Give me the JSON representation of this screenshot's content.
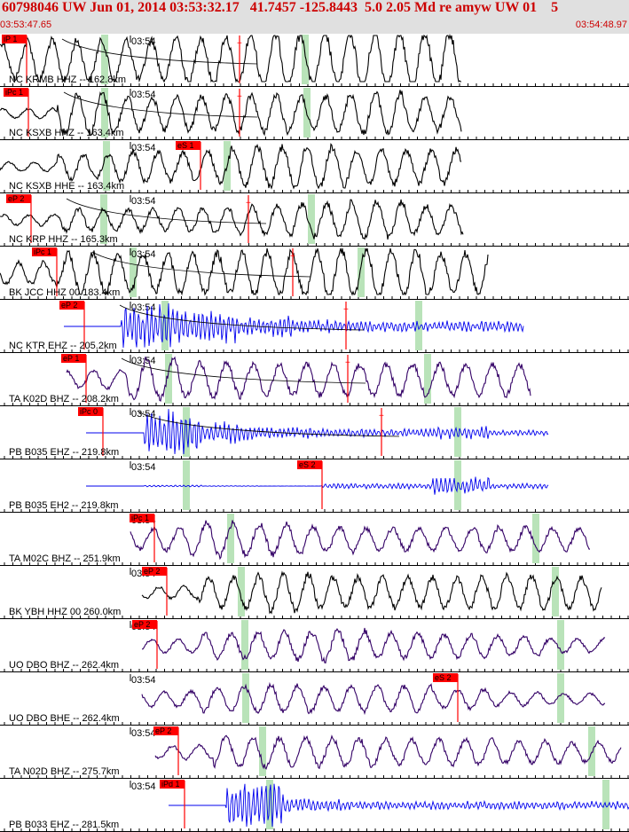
{
  "header": {
    "title": "60798046 UW Jun 01, 2014 03:53:32.17   41.7457 -125.8443  5.0 2.05 Md re amyw UW 01    5",
    "start_time": "03:53:47.65",
    "end_time": "03:54:48.97"
  },
  "colors": {
    "header_bg": "#e0e0e0",
    "header_text": "#cc0000",
    "pick": "#ff0000",
    "window": "#b9e3b9",
    "trace_black": "#000000",
    "trace_blue": "#0000ee",
    "trace_purple": "#330066"
  },
  "chart_data": {
    "type": "seismogram",
    "minute_label": "03:54",
    "traces": [
      {
        "label": "NC KRMB HHZ -- 162.8km",
        "color": "black",
        "picks": [
          {
            "label": "iP 1",
            "x": 30
          },
          {
            "label": "",
            "x": 270
          }
        ],
        "window": 118,
        "late_window": 344,
        "curve": true,
        "amp": 26,
        "env": [
          1.0,
          1.0,
          1.0,
          1.2,
          1.3,
          1.3,
          1.4,
          1.4
        ],
        "end": 520
      },
      {
        "label": "NC KSXB HHZ -- 163.4km",
        "color": "black",
        "picks": [
          {
            "label": "iPc 1",
            "x": 32
          },
          {
            "label": "",
            "x": 270
          }
        ],
        "window": 118,
        "late_window": 346,
        "curve": true,
        "amp": 22,
        "env": [
          0.3,
          1.2,
          1.0,
          1.0,
          1.1,
          1.0,
          1.2,
          1.0
        ],
        "end": 520
      },
      {
        "label": "NC KSXB HHE -- 163.4km",
        "color": "black",
        "picks": [
          {
            "label": "eS 1",
            "x": 226
          }
        ],
        "window": 120,
        "late_window": 256,
        "curve": false,
        "amp": 22,
        "env": [
          0.3,
          0.8,
          1.0,
          0.9,
          1.2,
          1.2,
          1.0,
          1.0
        ],
        "end": 520
      },
      {
        "label": "NC KRP HHZ -- 165.3km",
        "color": "black",
        "picks": [
          {
            "label": "eP 2",
            "x": 35
          },
          {
            "label": "",
            "x": 280
          }
        ],
        "window": 117,
        "late_window": 351,
        "curve": true,
        "amp": 18,
        "env": [
          0.4,
          0.8,
          0.8,
          0.9,
          1.0,
          1.2,
          1.3,
          1.0
        ],
        "end": 522
      },
      {
        "label": "BK JCC HHZ 00 183.4km",
        "color": "black",
        "picks": [
          {
            "label": "iPc 1",
            "x": 64
          },
          {
            "label": "",
            "x": 330
          }
        ],
        "window": 150,
        "late_window": 407,
        "curve": true,
        "amp": 26,
        "env": [
          0.6,
          1.0,
          1.0,
          1.0,
          1.1,
          1.2,
          1.2,
          1.0
        ],
        "end": 550
      },
      {
        "label": "NC KTR EHZ -- 205.2km",
        "color": "blue",
        "picks": [
          {
            "label": "eP 2",
            "x": 95
          },
          {
            "label": "",
            "x": 390
          }
        ],
        "window": 186,
        "late_window": 472,
        "curve": true,
        "amp": 14,
        "env": [
          0.0,
          1.6,
          1.2,
          0.8,
          0.5,
          0.4,
          0.4,
          0.4
        ],
        "start": 72,
        "end": 590
      },
      {
        "label": "TA K02D BHZ -- 208.2km",
        "color": "purple",
        "picks": [
          {
            "label": "eP 1",
            "x": 97
          },
          {
            "label": "",
            "x": 392
          }
        ],
        "window": 190,
        "late_window": 482,
        "curve": true,
        "amp": 20,
        "env": [
          0.6,
          1.3,
          1.1,
          1.0,
          1.0,
          1.0,
          1.0,
          1.0
        ],
        "start": 75,
        "end": 598
      },
      {
        "label": "PB B035 EHZ -- 219.8km",
        "color": "blue",
        "picks": [
          {
            "label": "iPc 0",
            "x": 116
          },
          {
            "label": "",
            "x": 430
          }
        ],
        "window": 210,
        "late_window": 516,
        "curve": true,
        "amp": 14,
        "env": [
          0.0,
          1.8,
          0.8,
          0.4,
          0.3,
          0.3,
          0.5,
          0.2
        ],
        "start": 97,
        "end": 618
      },
      {
        "label": "PB B035 EH2 -- 219.8km",
        "color": "blue",
        "picks": [
          {
            "label": "eS 2",
            "x": 363
          }
        ],
        "window": 210,
        "late_window": 516,
        "curve": false,
        "amp": 14,
        "env": [
          0.0,
          1.5,
          0.6,
          0.2,
          0.2,
          0.2,
          0.7,
          0.2
        ],
        "start": 97,
        "end": 618
      },
      {
        "label": "TA M02C BHZ -- 251.9km",
        "color": "purple",
        "picks": [
          {
            "label": "iPc 1",
            "x": 174
          }
        ],
        "window": 260,
        "late_window": 604,
        "curve": false,
        "amp": 18,
        "env": [
          0.8,
          1.2,
          1.1,
          0.9,
          0.8,
          0.8,
          0.9,
          0.8
        ],
        "start": 147,
        "end": 665
      },
      {
        "label": "BK YBH HHZ 00 260.0km",
        "color": "black",
        "picks": [
          {
            "label": "eP 2",
            "x": 188
          }
        ],
        "window": 272,
        "late_window": 626,
        "curve": false,
        "amp": 20,
        "env": [
          0.4,
          1.0,
          1.2,
          1.0,
          1.0,
          1.0,
          1.1,
          1.0
        ],
        "start": 160,
        "end": 678
      },
      {
        "label": "UO DBO BHZ -- 262.4km",
        "color": "purple",
        "picks": [
          {
            "label": "eP 2",
            "x": 177
          }
        ],
        "window": 276,
        "late_window": 632,
        "curve": false,
        "amp": 18,
        "env": [
          0.5,
          0.9,
          1.0,
          1.1,
          0.9,
          0.8,
          0.7,
          0.5
        ],
        "start": 160,
        "end": 682
      },
      {
        "label": "UO DBO BHE -- 262.4km",
        "color": "purple",
        "picks": [
          {
            "label": "eS 2",
            "x": 516
          }
        ],
        "window": 277,
        "late_window": 632,
        "curve": false,
        "amp": 18,
        "env": [
          0.6,
          1.0,
          1.1,
          1.0,
          1.0,
          0.7,
          0.5,
          0.4
        ],
        "start": 160,
        "end": 682
      },
      {
        "label": "TA N02D BHZ -- 275.7km",
        "color": "purple",
        "picks": [
          {
            "label": "eP 2",
            "x": 201
          }
        ],
        "window": 296,
        "late_window": 667,
        "curve": false,
        "amp": 18,
        "env": [
          0.5,
          1.1,
          1.0,
          1.0,
          0.9,
          0.9,
          0.8,
          0.7
        ],
        "start": 175,
        "end": 700
      },
      {
        "label": "PB B033 EHZ -- 281.5km",
        "color": "blue",
        "picks": [
          {
            "label": "iPd 1",
            "x": 208
          }
        ],
        "window": 304,
        "late_window": 683,
        "curve": false,
        "amp": 14,
        "env": [
          0.0,
          1.8,
          0.5,
          0.3,
          0.3,
          0.3,
          0.3,
          0.3
        ],
        "start": 190,
        "end": 709
      }
    ]
  }
}
